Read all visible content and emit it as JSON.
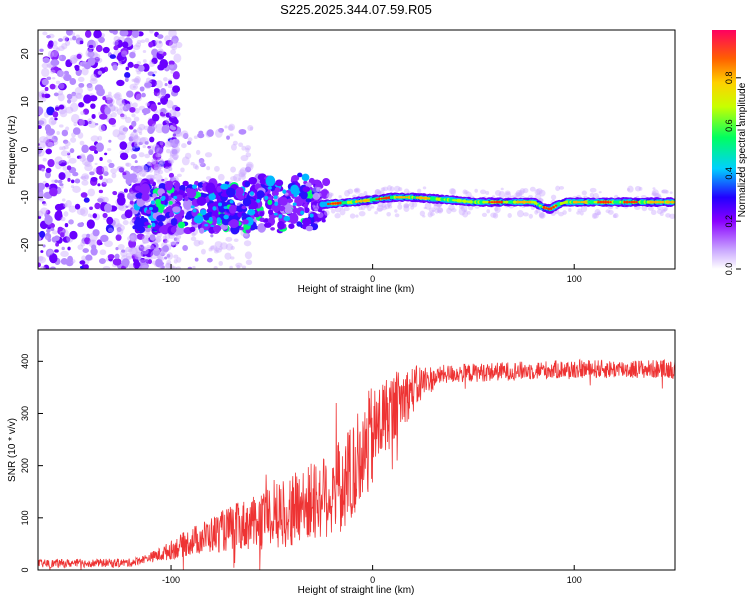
{
  "title": "S225.2025.344.07.59.R05",
  "chart_data": [
    {
      "type": "heatmap",
      "name": "spectrogram",
      "xlabel": "Height of straight line (km)",
      "ylabel": "Frequency (Hz)",
      "xlim": [
        -166,
        150
      ],
      "ylim": [
        -25,
        25
      ],
      "xticks": [
        -100,
        0,
        100
      ],
      "xtick_labels": [
        "-100",
        "0",
        "100"
      ],
      "yticks": [
        -20,
        -10,
        0,
        10,
        20
      ],
      "ytick_labels": [
        "-20",
        "-10",
        "0",
        "10",
        "20"
      ],
      "colorbar": {
        "label": "Normalized spectral amplitude",
        "range": [
          0,
          1
        ],
        "ticks": [
          0.0,
          0.2,
          0.4,
          0.6,
          0.8
        ],
        "tick_labels": [
          "0.0",
          "0.2",
          "0.4",
          "0.6",
          "0.8"
        ]
      },
      "ridge": {
        "description": "narrow band of high amplitude near -11 Hz from about -25 km onward",
        "x": [
          -25,
          -10,
          0,
          10,
          20,
          30,
          40,
          50,
          60,
          70,
          80,
          84,
          88,
          92,
          96,
          100,
          120,
          150
        ],
        "freq": [
          -11.5,
          -11,
          -10.5,
          -10,
          -10,
          -10.3,
          -10.6,
          -11,
          -11,
          -11,
          -11,
          -12,
          -12.5,
          -11.5,
          -11,
          -11,
          -11,
          -11
        ]
      }
    },
    {
      "type": "line",
      "name": "snr",
      "xlabel": "Height of straight line (km)",
      "ylabel": "SNR (10 * v/v)",
      "xlim": [
        -166,
        150
      ],
      "ylim": [
        0,
        460
      ],
      "xticks": [
        -100,
        0,
        100
      ],
      "xtick_labels": [
        "-100",
        "0",
        "100"
      ],
      "yticks": [
        0,
        100,
        200,
        300,
        400
      ],
      "ytick_labels": [
        "0",
        "100",
        "200",
        "300",
        "400"
      ],
      "series": [
        {
          "name": "SNR",
          "color": "#ee3333",
          "trend_x": [
            -166,
            -120,
            -105,
            -90,
            -70,
            -50,
            -30,
            -15,
            -5,
            5,
            15,
            25,
            35,
            60,
            100,
            150
          ],
          "trend_y": [
            12,
            14,
            30,
            55,
            80,
            100,
            130,
            160,
            220,
            290,
            330,
            360,
            375,
            380,
            385,
            385
          ]
        }
      ]
    }
  ]
}
